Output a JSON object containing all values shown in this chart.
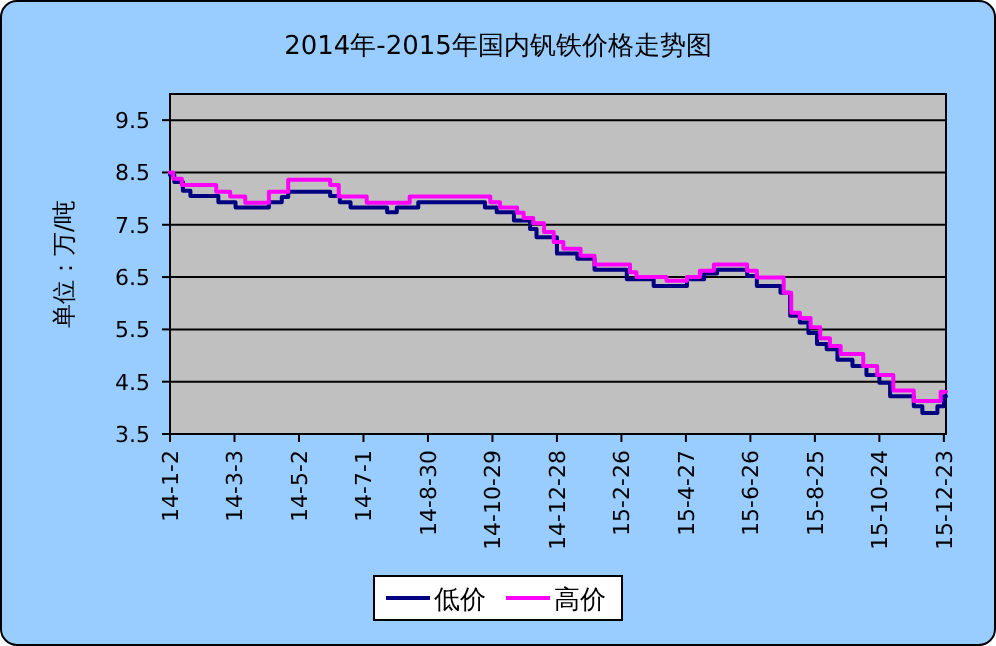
{
  "chart_data": {
    "type": "step",
    "title": "2014年-2015年国内钒铁价格走势图",
    "ylabel": "单位：万/吨",
    "xlim": [
      "2014-01-02",
      "2015-12-25"
    ],
    "ylim": [
      3.5,
      10
    ],
    "yticks": [
      3.5,
      4.5,
      5.5,
      6.5,
      7.5,
      8.5,
      9.5
    ],
    "xticks": [
      {
        "value": "2014-01-02",
        "label": "14-1-2"
      },
      {
        "value": "2014-03-03",
        "label": "14-3-3"
      },
      {
        "value": "2014-05-02",
        "label": "14-5-2"
      },
      {
        "value": "2014-07-01",
        "label": "14-7-1"
      },
      {
        "value": "2014-08-30",
        "label": "14-8-30"
      },
      {
        "value": "2014-10-29",
        "label": "14-10-29"
      },
      {
        "value": "2014-12-28",
        "label": "14-12-28"
      },
      {
        "value": "2015-02-26",
        "label": "15-2-26"
      },
      {
        "value": "2015-04-27",
        "label": "15-4-27"
      },
      {
        "value": "2015-06-26",
        "label": "15-6-26"
      },
      {
        "value": "2015-08-25",
        "label": "15-8-25"
      },
      {
        "value": "2015-10-24",
        "label": "15-10-24"
      },
      {
        "value": "2015-12-23",
        "label": "15-12-23"
      }
    ],
    "grid": "y",
    "legend": "bottom",
    "line_style": "solid",
    "marker": "none",
    "series": [
      {
        "name": "低价",
        "color": "#000080",
        "x": [
          "2014-01-02",
          "2014-01-06",
          "2014-01-14",
          "2014-01-21",
          "2014-02-16",
          "2014-03-04",
          "2014-04-04",
          "2014-04-16",
          "2014-04-22",
          "2014-05-31",
          "2014-06-09",
          "2014-06-19",
          "2014-07-23",
          "2014-08-01",
          "2014-08-21",
          "2014-10-22",
          "2014-11-02",
          "2014-11-18",
          "2014-12-03",
          "2014-12-09",
          "2014-12-28",
          "2015-01-16",
          "2015-02-01",
          "2015-03-03",
          "2015-03-28",
          "2015-04-28",
          "2015-05-14",
          "2015-05-26",
          "2015-06-23",
          "2015-07-02",
          "2015-07-24",
          "2015-08-02",
          "2015-08-11",
          "2015-08-19",
          "2015-08-27",
          "2015-09-05",
          "2015-09-15",
          "2015-09-29",
          "2015-10-12",
          "2015-10-24",
          "2015-11-03",
          "2015-11-25",
          "2015-12-03",
          "2015-12-17",
          "2015-12-23",
          "2015-12-25"
        ],
        "values": [
          8.45,
          8.32,
          8.15,
          8.05,
          7.93,
          7.83,
          7.93,
          8.03,
          8.13,
          8.05,
          7.93,
          7.83,
          7.74,
          7.83,
          7.93,
          7.83,
          7.74,
          7.58,
          7.42,
          7.26,
          6.95,
          6.85,
          6.64,
          6.46,
          6.33,
          6.46,
          6.57,
          6.64,
          6.52,
          6.33,
          6.2,
          5.76,
          5.63,
          5.43,
          5.22,
          5.12,
          4.92,
          4.8,
          4.63,
          4.48,
          4.22,
          4.03,
          3.9,
          4.03,
          4.22,
          4.22
        ]
      },
      {
        "name": "高价",
        "color": "#ff00ff",
        "x": [
          "2014-01-02",
          "2014-01-05",
          "2014-01-13",
          "2014-02-14",
          "2014-02-27",
          "2014-03-13",
          "2014-04-04",
          "2014-04-22",
          "2014-05-31",
          "2014-06-08",
          "2014-07-04",
          "2014-08-13",
          "2014-10-27",
          "2014-11-05",
          "2014-11-21",
          "2014-11-27",
          "2014-12-06",
          "2014-12-16",
          "2014-12-25",
          "2015-01-03",
          "2015-01-19",
          "2015-02-01",
          "2015-03-06",
          "2015-03-12",
          "2015-04-09",
          "2015-04-28",
          "2015-05-10",
          "2015-05-23",
          "2015-06-23",
          "2015-07-02",
          "2015-07-27",
          "2015-08-03",
          "2015-08-11",
          "2015-08-21",
          "2015-08-30",
          "2015-09-08",
          "2015-09-18",
          "2015-10-09",
          "2015-10-22",
          "2015-11-06",
          "2015-11-25",
          "2015-12-20",
          "2015-12-25"
        ],
        "values": [
          8.5,
          8.38,
          8.26,
          8.13,
          8.04,
          7.92,
          8.13,
          8.36,
          8.26,
          8.04,
          7.92,
          8.04,
          7.93,
          7.83,
          7.73,
          7.63,
          7.53,
          7.36,
          7.17,
          7.04,
          6.91,
          6.74,
          6.59,
          6.5,
          6.43,
          6.5,
          6.62,
          6.74,
          6.62,
          6.49,
          6.2,
          5.82,
          5.72,
          5.54,
          5.33,
          5.18,
          5.03,
          4.8,
          4.63,
          4.33,
          4.13,
          4.31,
          4.31
        ]
      }
    ]
  }
}
